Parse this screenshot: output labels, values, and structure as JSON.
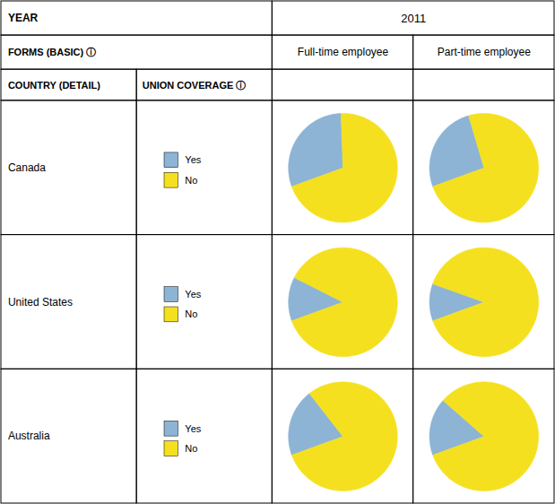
{
  "chart_data": {
    "type": "pie",
    "annotations": [
      "YEAR",
      "2011",
      "FORMS (BASIC) ⓘ",
      "COUNTRY (DETAIL)",
      "UNION COVERAGE ⓘ"
    ],
    "categories": [
      "Yes",
      "No"
    ],
    "colors": [
      "#8db4d4",
      "#f5e020"
    ],
    "columns": [
      "Full-time employee",
      "Part-time employee"
    ],
    "rows": [
      {
        "name": "Canada",
        "values": [
          [
            30,
            70
          ],
          [
            26,
            74
          ]
        ]
      },
      {
        "name": "United States",
        "values": [
          [
            13,
            87
          ],
          [
            11,
            89
          ]
        ]
      },
      {
        "name": "Australia",
        "values": [
          [
            20,
            80
          ],
          [
            17,
            83
          ]
        ]
      }
    ]
  }
}
